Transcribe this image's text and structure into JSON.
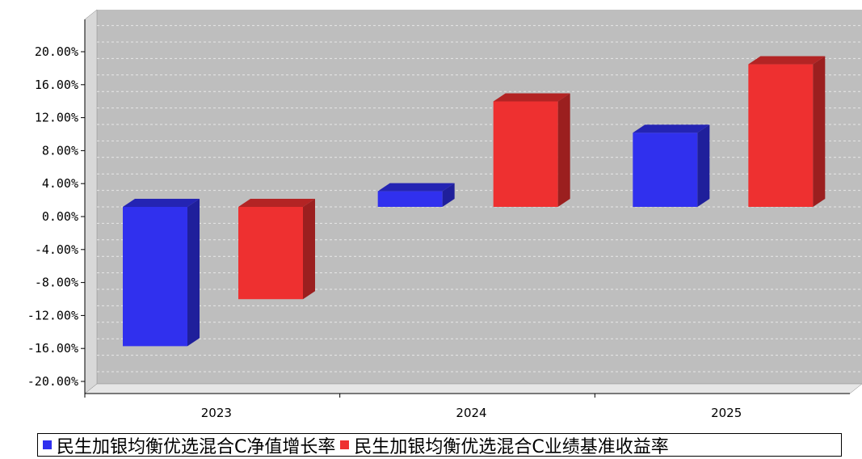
{
  "chart_data": {
    "type": "bar",
    "categories": [
      "2023",
      "2024",
      "2025"
    ],
    "series": [
      {
        "name": "民生加银均衡优选混合C净值增长率",
        "values": [
          -16.9,
          1.9,
          9.0
        ],
        "color": "#3030EE"
      },
      {
        "name": "民生加银均衡优选混合C业绩基准收益率",
        "values": [
          -11.2,
          12.8,
          17.3
        ],
        "color": "#EE3030"
      }
    ],
    "ylim": [
      -22,
      24
    ],
    "yticks": [
      "20.00%",
      "16.00%",
      "12.00%",
      "8.00%",
      "4.00%",
      "0.00%",
      "-4.00%",
      "-8.00%",
      "-12.00%",
      "-16.00%",
      "-20.00%"
    ],
    "ytick_values": [
      20,
      16,
      12,
      8,
      4,
      0,
      -4,
      -8,
      -12,
      -16,
      -20
    ],
    "grid": true,
    "legend_position": "bottom",
    "style": "3d"
  }
}
